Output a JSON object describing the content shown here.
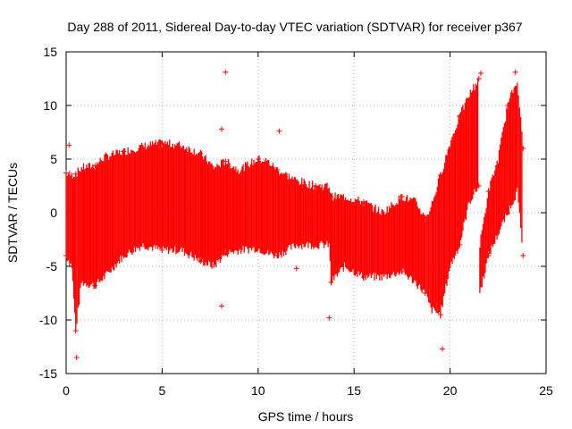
{
  "chart_data": {
    "type": "scatter",
    "title": "Day 288 of 2011, Sidereal Day-to-day VTEC variation (SDTVAR) for receiver p367",
    "xlabel": "GPS time / hours",
    "ylabel": "SDTVAR / TECUs",
    "xlim": [
      0,
      25
    ],
    "ylim": [
      -15,
      15
    ],
    "x_ticks": [
      0,
      5,
      10,
      15,
      20,
      25
    ],
    "y_ticks": [
      -15,
      -10,
      -5,
      0,
      5,
      10,
      15
    ],
    "grid": true,
    "marker": "+",
    "color": "#ff0000",
    "series": [
      {
        "name": "SDTVAR",
        "envelope": [
          {
            "x": 0.0,
            "low": -4.0,
            "high": 3.7
          },
          {
            "x": 0.3,
            "low": -5.0,
            "high": 3.5
          },
          {
            "x": 0.5,
            "low": -11.0,
            "high": 3.6
          },
          {
            "x": 0.8,
            "low": -6.5,
            "high": 4.2
          },
          {
            "x": 1.5,
            "low": -6.8,
            "high": 4.4
          },
          {
            "x": 2.0,
            "low": -6.0,
            "high": 5.2
          },
          {
            "x": 3.0,
            "low": -4.0,
            "high": 5.7
          },
          {
            "x": 4.0,
            "low": -3.0,
            "high": 6.2
          },
          {
            "x": 5.0,
            "low": -3.5,
            "high": 6.5
          },
          {
            "x": 6.0,
            "low": -3.5,
            "high": 6.3
          },
          {
            "x": 7.0,
            "low": -4.5,
            "high": 5.5
          },
          {
            "x": 7.7,
            "low": -5.0,
            "high": 4.2
          },
          {
            "x": 8.3,
            "low": -3.8,
            "high": 4.8
          },
          {
            "x": 9.0,
            "low": -3.5,
            "high": 4.0
          },
          {
            "x": 10.0,
            "low": -3.3,
            "high": 5.0
          },
          {
            "x": 10.5,
            "low": -3.8,
            "high": 4.8
          },
          {
            "x": 11.0,
            "low": -4.0,
            "high": 4.0
          },
          {
            "x": 12.0,
            "low": -3.0,
            "high": 3.0
          },
          {
            "x": 13.0,
            "low": -3.0,
            "high": 2.5
          },
          {
            "x": 13.7,
            "low": -3.0,
            "high": 2.5
          },
          {
            "x": 13.8,
            "low": -6.5,
            "high": 1.5
          },
          {
            "x": 14.5,
            "low": -5.0,
            "high": 1.5
          },
          {
            "x": 15.5,
            "low": -6.0,
            "high": 1.0
          },
          {
            "x": 16.5,
            "low": -6.0,
            "high": 0.0
          },
          {
            "x": 17.5,
            "low": -5.5,
            "high": 1.5
          },
          {
            "x": 18.2,
            "low": -6.5,
            "high": 1.0
          },
          {
            "x": 18.7,
            "low": -7.5,
            "high": -0.5
          },
          {
            "x": 19.0,
            "low": -9.0,
            "high": 0.5
          },
          {
            "x": 19.5,
            "low": -9.5,
            "high": 3.5
          },
          {
            "x": 20.0,
            "low": -5.0,
            "high": 6.5
          },
          {
            "x": 20.5,
            "low": -3.0,
            "high": 9.0
          },
          {
            "x": 21.0,
            "low": 1.0,
            "high": 11.0
          },
          {
            "x": 21.5,
            "low": 2.5,
            "high": 12.5
          },
          {
            "x": 21.55,
            "low": -7.5,
            "high": -3.0
          },
          {
            "x": 22.0,
            "low": -4.0,
            "high": 2.0
          },
          {
            "x": 22.5,
            "low": -2.0,
            "high": 5.0
          },
          {
            "x": 23.0,
            "low": 0.0,
            "high": 10.0
          },
          {
            "x": 23.5,
            "low": 2.0,
            "high": 12.5
          },
          {
            "x": 23.8,
            "low": -4.0,
            "high": 6.0
          }
        ],
        "outliers": [
          {
            "x": 0.15,
            "y": 6.3
          },
          {
            "x": 0.55,
            "y": -13.5
          },
          {
            "x": 8.3,
            "y": 13.1
          },
          {
            "x": 8.1,
            "y": 7.8
          },
          {
            "x": 8.1,
            "y": -8.7
          },
          {
            "x": 11.1,
            "y": 7.6
          },
          {
            "x": 12.0,
            "y": -5.2
          },
          {
            "x": 13.7,
            "y": -9.8
          },
          {
            "x": 19.6,
            "y": -12.7
          },
          {
            "x": 20.5,
            "y": -1.0
          },
          {
            "x": 21.6,
            "y": 13.0
          },
          {
            "x": 23.4,
            "y": 13.1
          }
        ]
      }
    ]
  }
}
